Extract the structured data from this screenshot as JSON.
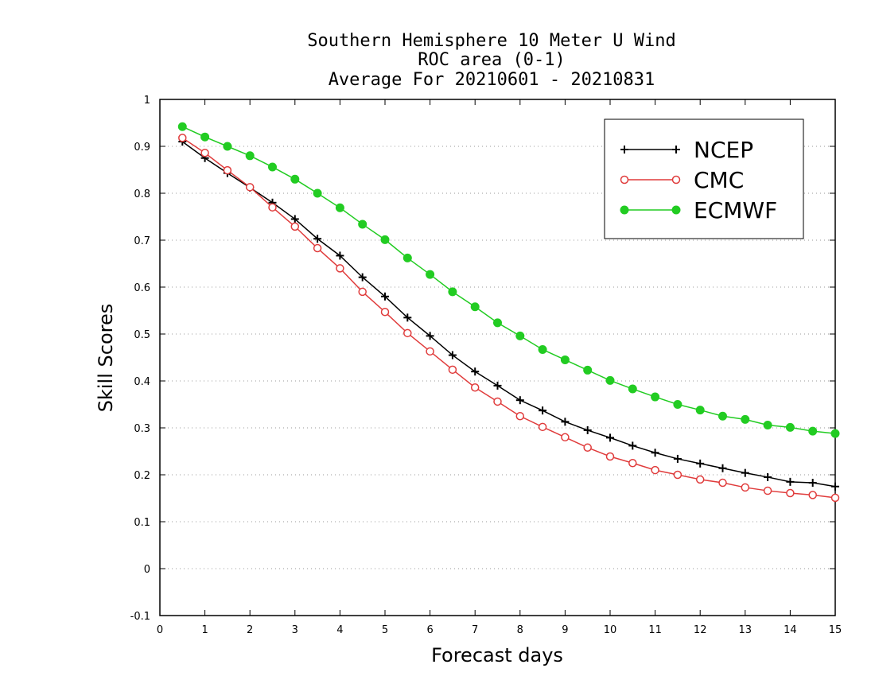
{
  "chart_data": {
    "type": "line",
    "title_lines": [
      "Southern Hemisphere 10 Meter U Wind",
      "ROC area (0-1)",
      "Average For 20210601 - 20210831"
    ],
    "xlabel": "Forecast days",
    "ylabel": "Skill Scores",
    "xlim": [
      0,
      15
    ],
    "ylim": [
      -0.1,
      1
    ],
    "x_ticks": [
      "0",
      "1",
      "2",
      "3",
      "4",
      "5",
      "6",
      "7",
      "8",
      "9",
      "10",
      "11",
      "12",
      "13",
      "14",
      "15"
    ],
    "y_ticks": [
      "-0.1",
      "0",
      "0.1",
      "0.2",
      "0.3",
      "0.4",
      "0.5",
      "0.6",
      "0.7",
      "0.8",
      "0.9",
      "1"
    ],
    "grid": "horizontal dotted",
    "legend_position": "top-right",
    "x": [
      0.5,
      1,
      1.5,
      2,
      2.5,
      3,
      3.5,
      4,
      4.5,
      5,
      5.5,
      6,
      6.5,
      7,
      7.5,
      8,
      8.5,
      9,
      9.5,
      10,
      10.5,
      11,
      11.5,
      12,
      12.5,
      13,
      13.5,
      14,
      14.5,
      15
    ],
    "series": [
      {
        "name": "NCEP",
        "color": "#000000",
        "marker": "plus",
        "values": [
          0.91,
          0.875,
          0.843,
          0.812,
          0.78,
          0.745,
          0.703,
          0.667,
          0.621,
          0.58,
          0.535,
          0.496,
          0.455,
          0.42,
          0.39,
          0.359,
          0.337,
          0.313,
          0.295,
          0.279,
          0.262,
          0.247,
          0.234,
          0.224,
          0.214,
          0.204,
          0.195,
          0.185,
          0.183,
          0.175
        ]
      },
      {
        "name": "CMC",
        "color": "#e03c3c",
        "marker": "open-circle",
        "values": [
          0.918,
          0.886,
          0.849,
          0.813,
          0.77,
          0.729,
          0.683,
          0.64,
          0.59,
          0.547,
          0.502,
          0.463,
          0.424,
          0.386,
          0.356,
          0.325,
          0.302,
          0.28,
          0.258,
          0.239,
          0.225,
          0.21,
          0.2,
          0.19,
          0.183,
          0.173,
          0.166,
          0.161,
          0.157,
          0.151
        ]
      },
      {
        "name": "ECMWF",
        "color": "#22cc22",
        "marker": "filled-circle",
        "values": [
          0.942,
          0.92,
          0.9,
          0.88,
          0.856,
          0.83,
          0.8,
          0.769,
          0.734,
          0.701,
          0.662,
          0.627,
          0.59,
          0.558,
          0.524,
          0.496,
          0.467,
          0.445,
          0.423,
          0.401,
          0.383,
          0.366,
          0.35,
          0.338,
          0.325,
          0.318,
          0.306,
          0.301,
          0.293,
          0.288
        ]
      }
    ]
  }
}
